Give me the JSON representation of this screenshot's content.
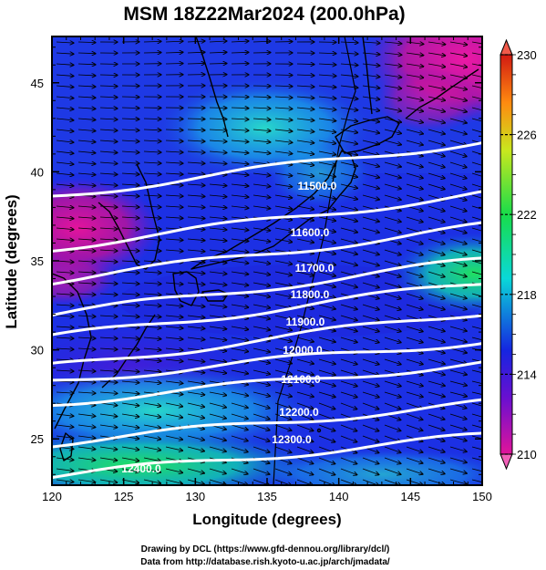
{
  "title": "MSM 18Z22Mar2024 (200.0hPa)",
  "axes": {
    "xlabel": "Longitude (degrees)",
    "ylabel": "Latitude  (degrees)",
    "x_ticks": [
      "120",
      "125",
      "130",
      "135",
      "140",
      "145",
      "150"
    ],
    "y_ticks": [
      "25",
      "30",
      "35",
      "40",
      "45"
    ],
    "xlim": [
      120,
      150
    ],
    "ylim": [
      22.4,
      47.6
    ]
  },
  "colorbar": {
    "labels": [
      "230",
      "226",
      "222",
      "218",
      "214",
      "210"
    ],
    "range": [
      210,
      230
    ],
    "colors": [
      "#e0149a",
      "#6a0fd0",
      "#1525e0",
      "#0ad8d8",
      "#18dc4a",
      "#c8e81e",
      "#ff8a10",
      "#d21a12"
    ]
  },
  "contours": {
    "labels": [
      "11500.0",
      "11600.0",
      "11700.0",
      "11800.0",
      "11900.0",
      "12000.0",
      "12100.0",
      "12200.0",
      "12300.0",
      "12400.0"
    ]
  },
  "credits": {
    "line1": "Drawing by DCL (https://www.gfd-dennou.org/library/dcl/)",
    "line2": "Data from http://database.rish.kyoto-u.ac.jp/arch/jmadata/"
  }
}
